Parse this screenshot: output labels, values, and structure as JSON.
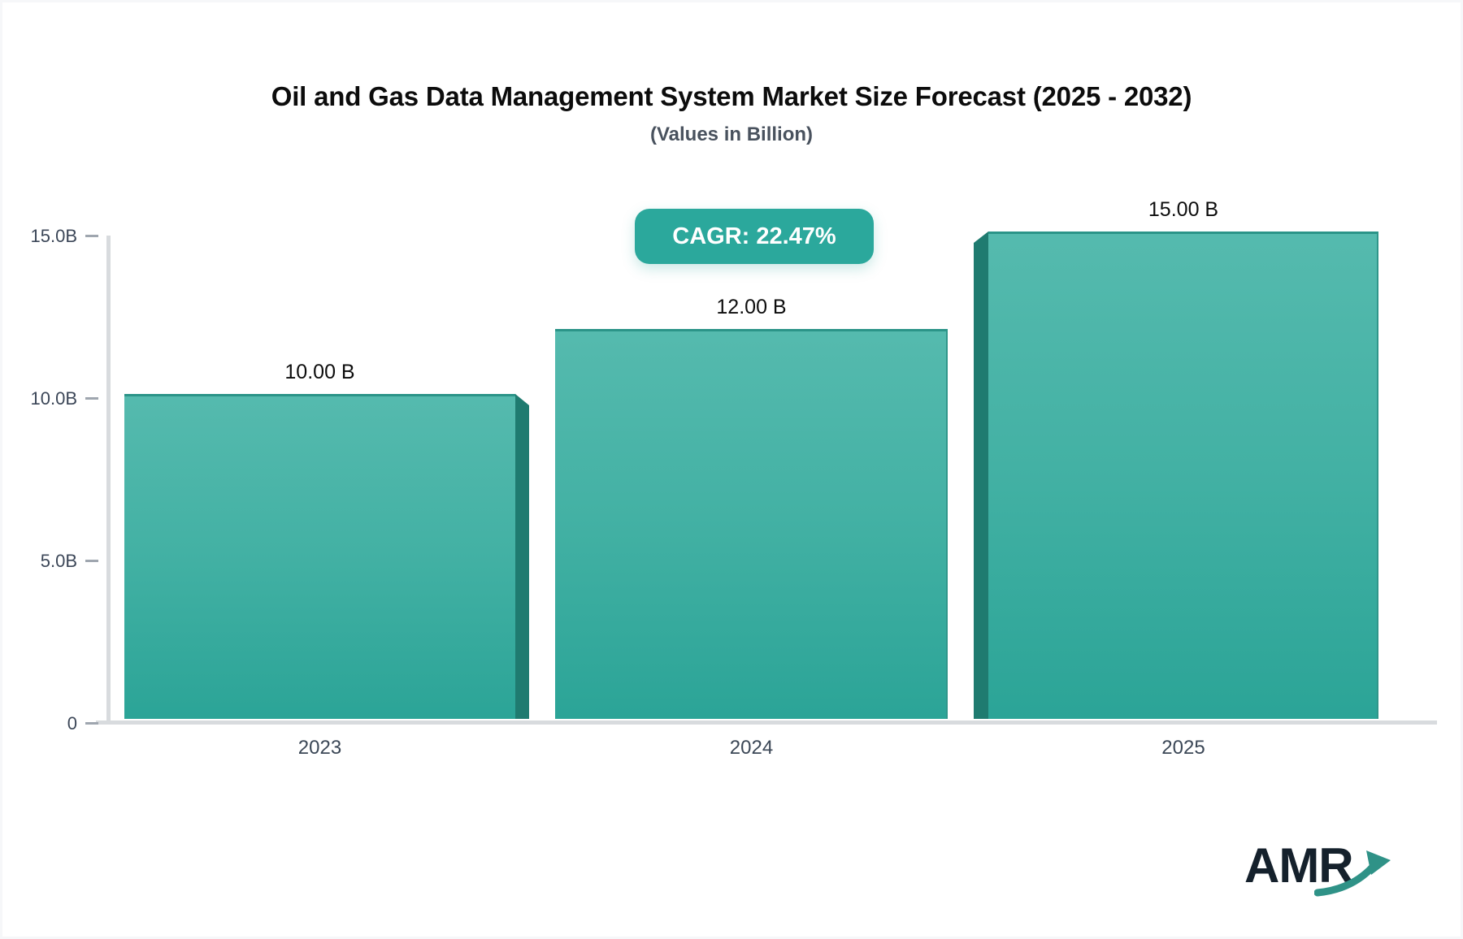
{
  "header": {
    "title": "Oil and Gas Data Management System Market Size Forecast (2025 - 2032)",
    "subtitle": "(Values in Billion)"
  },
  "badge": {
    "label": "CAGR: 22.47%"
  },
  "chart_data": {
    "type": "bar",
    "title": "Oil and Gas Data Management System Market Size Forecast (2025 - 2032)",
    "subtitle": "(Values in Billion)",
    "categories": [
      "2023",
      "2024",
      "2025"
    ],
    "values": [
      10.0,
      12.0,
      15.0
    ],
    "value_labels": [
      "10.00 B",
      "12.00 B",
      "15.00 B"
    ],
    "yticks": [
      {
        "label": "15.0B",
        "value": 15
      },
      {
        "label": "10.0B",
        "value": 10
      },
      {
        "label": "5.0B",
        "value": 5
      },
      {
        "label": "0",
        "value": 0
      }
    ],
    "ylim": [
      0,
      15
    ],
    "xlabel": "",
    "ylabel": "",
    "grid": false,
    "legend_position": "none",
    "annotations": [
      "CAGR: 22.47%"
    ]
  },
  "logo": {
    "text": "AMR"
  },
  "colors": {
    "bar_gradient_top": "#55BAAE",
    "bar_gradient_bottom": "#2BA497",
    "bar_edge": "#2B9488",
    "bar_side_3d": "#1F7B70",
    "badge_bg": "#2BA89C",
    "axis_line": "#D8DBDE",
    "tick_mark": "#9FA6AF",
    "axis_label": "#3C4758",
    "value_label": "#0D0D0D",
    "title": "#0C0C0C",
    "subtitle": "#49525E",
    "logo_text": "#15212C",
    "logo_arrow": "#2F9287"
  }
}
